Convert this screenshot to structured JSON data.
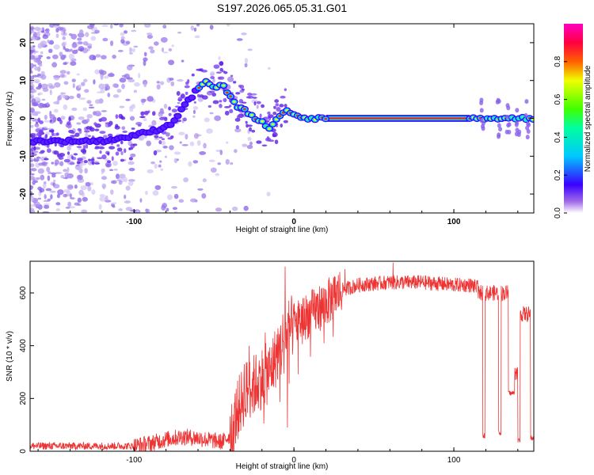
{
  "title": "S197.2026.065.05.31.G01",
  "chart_data": [
    {
      "type": "heatmap",
      "xlabel": "Height of straight line (km)",
      "ylabel": "Frequency (Hz)",
      "xlim": [
        -165,
        150
      ],
      "ylim": [
        -25,
        25
      ],
      "xticks": [
        -100,
        0,
        100
      ],
      "yticks": [
        -20,
        -10,
        0,
        10,
        20
      ],
      "colorbar": {
        "label": "Normalized spectral amplitude",
        "range": [
          0,
          1
        ],
        "ticks": [
          "0.0",
          "0.2",
          "0.4",
          "0.6",
          "0.8"
        ]
      },
      "ridge": {
        "x": [
          -165,
          -140,
          -120,
          -105,
          -95,
          -85,
          -75,
          -70,
          -65,
          -60,
          -55,
          -50,
          -45,
          -40,
          -35,
          -30,
          -25,
          -20,
          -15,
          -10,
          -7,
          -5,
          0,
          5,
          10,
          20,
          110,
          115,
          120,
          130,
          140,
          150
        ],
        "y": [
          -6,
          -6,
          -6,
          -5,
          -4,
          -3,
          -1,
          3,
          5,
          8,
          10,
          8,
          9,
          6,
          3,
          2,
          0,
          -1,
          -3,
          0,
          1,
          2,
          1,
          0,
          0,
          0,
          0,
          0,
          0,
          0,
          0,
          0
        ]
      }
    },
    {
      "type": "line",
      "xlabel": "Height of straight line (km)",
      "ylabel": "SNR (10 * v/v)",
      "xlim": [
        -165,
        150
      ],
      "ylim": [
        0,
        720
      ],
      "xticks": [
        -100,
        0,
        100
      ],
      "yticks": [
        0,
        200,
        400,
        600
      ],
      "color": "#ee3333",
      "envelope": {
        "x": [
          -165,
          -130,
          -100,
          -90,
          -80,
          -70,
          -60,
          -50,
          -45,
          -40,
          -35,
          -30,
          -25,
          -20,
          -15,
          -10,
          -5,
          0,
          10,
          20,
          30,
          40,
          60,
          80,
          100,
          110,
          115
        ],
        "y": [
          20,
          20,
          20,
          30,
          45,
          55,
          50,
          40,
          35,
          60,
          160,
          230,
          250,
          280,
          300,
          380,
          450,
          480,
          520,
          560,
          610,
          630,
          640,
          640,
          630,
          630,
          620
        ]
      },
      "dropouts": [
        {
          "from": 118,
          "to": 119.5,
          "level": 60
        },
        {
          "from": 128,
          "to": 129.5,
          "level": 70
        },
        {
          "from": 134,
          "to": 138,
          "level": 220
        },
        {
          "from": 140,
          "to": 141.5,
          "level": 40
        },
        {
          "from": 148,
          "to": 150,
          "level": 50
        }
      ],
      "spikes": [
        {
          "x": -34,
          "y": 140
        },
        {
          "x": -31,
          "y": 330
        },
        {
          "x": -28,
          "y": 400
        },
        {
          "x": -18,
          "y": 450
        },
        {
          "x": -8,
          "y": 290
        },
        {
          "x": -5.5,
          "y": 700
        },
        {
          "x": -4,
          "y": 90
        },
        {
          "x": 32,
          "y": 690
        },
        {
          "x": 62,
          "y": 715
        }
      ]
    }
  ]
}
